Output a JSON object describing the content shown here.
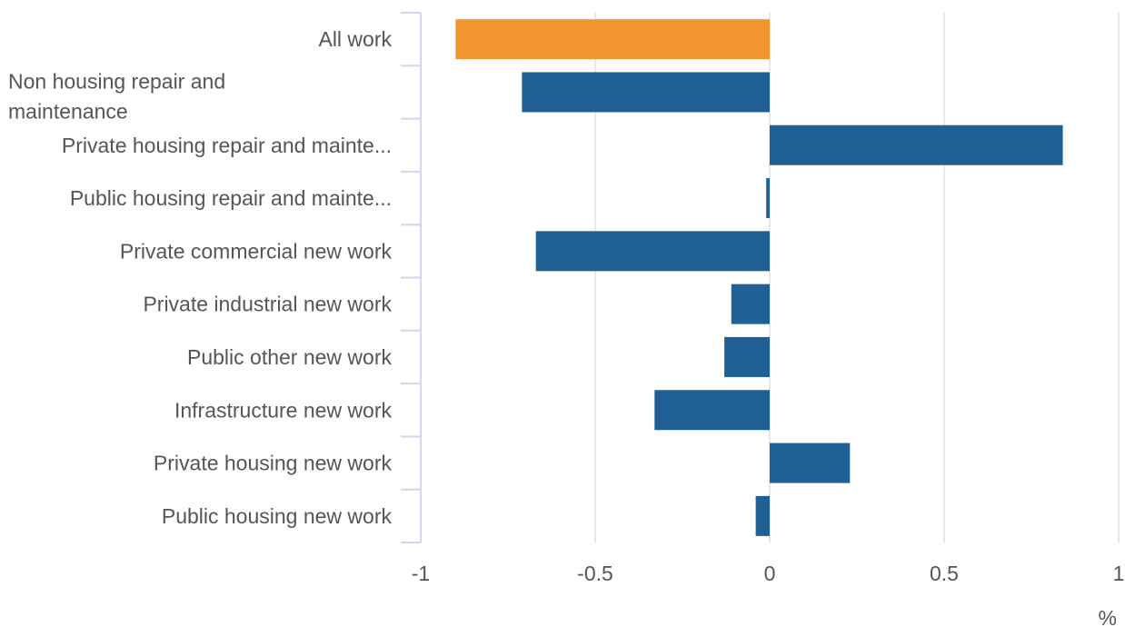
{
  "chart_data": {
    "type": "bar",
    "orientation": "horizontal",
    "categories": [
      [
        "All work"
      ],
      [
        "Non housing repair and",
        "maintenance"
      ],
      [
        "Private housing repair and mainte..."
      ],
      [
        "Public housing repair and mainte..."
      ],
      [
        "Private commercial new work"
      ],
      [
        "Private industrial new work"
      ],
      [
        "Public other new work"
      ],
      [
        "Infrastructure new work"
      ],
      [
        "Private housing new work"
      ],
      [
        "Public housing new work"
      ]
    ],
    "values": [
      -0.9,
      -0.71,
      0.84,
      -0.01,
      -0.67,
      -0.11,
      -0.13,
      -0.33,
      0.23,
      -0.04
    ],
    "highlight_index": 0,
    "xlim": [
      -1,
      1
    ],
    "x_ticks": [
      -1,
      -0.5,
      0,
      0.5,
      1
    ],
    "x_tick_labels": [
      "-1",
      "-0.5",
      "0",
      "0.5",
      "1"
    ],
    "xlabel": "%",
    "grid": "vertical",
    "colors": {
      "highlight": "#F39431",
      "bar": "#206095",
      "grid": "#E2E2E3",
      "axis": "#D0D6EC",
      "text": "#555555"
    }
  }
}
